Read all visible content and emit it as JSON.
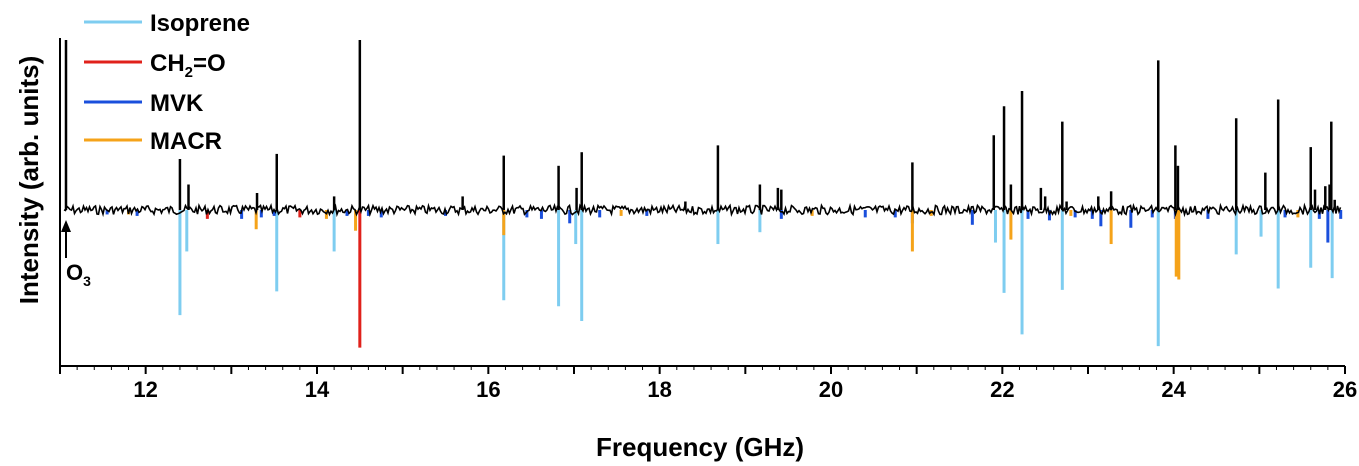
{
  "chart_data": {
    "type": "line",
    "xlabel": "Frequency (GHz)",
    "ylabel": "Intensity (arb. units)",
    "xlim": [
      11,
      26
    ],
    "ylim": [
      -1.0,
      1.0
    ],
    "x_ticks": [
      "12",
      "14",
      "16",
      "18",
      "20",
      "22",
      "24",
      "26"
    ],
    "legend": {
      "position": "top-left",
      "entries": [
        {
          "label": "Isoprene",
          "color": "#7ecdf0"
        },
        {
          "label": "CH2=O",
          "label_main": "CH",
          "label_sub": "2",
          "label_tail": "=O",
          "color": "#e0211b"
        },
        {
          "label": "MVK",
          "color": "#1a4fdc"
        },
        {
          "label": "MACR",
          "color": "#f5a31a"
        }
      ]
    },
    "annotation": {
      "label_main": "O",
      "label_sub": "3",
      "x": 11.07
    },
    "observed_color": "#000000",
    "observed": {
      "x": [
        11.07,
        12.4,
        12.5,
        13.3,
        13.53,
        14.2,
        14.5,
        15.7,
        16.18,
        16.82,
        17.03,
        17.09,
        18.3,
        18.68,
        19.17,
        19.38,
        19.42,
        20.95,
        21.9,
        22.02,
        22.1,
        22.23,
        22.45,
        22.5,
        22.7,
        22.75,
        23.12,
        23.27,
        23.82,
        24.02,
        24.05,
        24.73,
        25.07,
        25.22,
        25.6,
        25.65,
        25.77,
        25.82,
        25.84,
        25.88
      ],
      "y": [
        1.0,
        0.3,
        0.15,
        0.1,
        0.33,
        0.08,
        1.0,
        0.08,
        0.32,
        0.26,
        0.13,
        0.34,
        0.05,
        0.38,
        0.15,
        0.13,
        0.12,
        0.28,
        0.44,
        0.61,
        0.15,
        0.7,
        0.13,
        0.08,
        0.52,
        0.05,
        0.08,
        0.11,
        0.88,
        0.38,
        0.26,
        0.54,
        0.22,
        0.65,
        0.37,
        0.12,
        0.14,
        0.15,
        0.52,
        0.06
      ]
    },
    "series": [
      {
        "name": "Isoprene",
        "color": "#7ecdf0",
        "x": [
          12.4,
          12.48,
          13.53,
          14.2,
          16.18,
          16.82,
          17.02,
          17.09,
          18.68,
          19.17,
          21.92,
          22.02,
          22.23,
          22.7,
          23.82,
          24.73,
          25.02,
          25.22,
          25.6,
          25.85
        ],
        "y": [
          -0.71,
          -0.28,
          -0.55,
          -0.28,
          -0.61,
          -0.65,
          -0.23,
          -0.75,
          -0.23,
          -0.15,
          -0.22,
          -0.56,
          -0.84,
          -0.54,
          -0.92,
          -0.3,
          -0.18,
          -0.53,
          -0.39,
          -0.46
        ]
      },
      {
        "name": "CH2=O",
        "color": "#e0211b",
        "x": [
          12.72,
          13.8,
          14.5
        ],
        "y": [
          -0.06,
          -0.05,
          -0.93
        ]
      },
      {
        "name": "MVK",
        "color": "#1a4fdc",
        "x": [
          11.55,
          11.9,
          13.12,
          13.35,
          13.5,
          14.35,
          14.6,
          14.75,
          15.5,
          16.45,
          16.62,
          16.95,
          17.3,
          17.85,
          19.42,
          20.4,
          20.75,
          20.95,
          21.65,
          22.3,
          22.55,
          22.85,
          23.05,
          23.15,
          23.5,
          23.75,
          24.02,
          24.4,
          25.3,
          25.7,
          25.8,
          25.95
        ],
        "y": [
          -0.03,
          -0.04,
          -0.06,
          -0.05,
          -0.04,
          -0.04,
          -0.04,
          -0.05,
          -0.04,
          -0.05,
          -0.06,
          -0.09,
          -0.05,
          -0.04,
          -0.06,
          -0.05,
          -0.05,
          -0.09,
          -0.1,
          -0.06,
          -0.07,
          -0.05,
          -0.06,
          -0.11,
          -0.12,
          -0.05,
          -0.06,
          -0.06,
          -0.05,
          -0.06,
          -0.22,
          -0.06
        ]
      },
      {
        "name": "MACR",
        "color": "#f5a31a",
        "x": [
          11.8,
          13.29,
          14.11,
          14.45,
          16.18,
          17.55,
          19.78,
          20.95,
          21.17,
          22.1,
          22.8,
          23.27,
          24.03,
          24.06,
          25.45
        ],
        "y": [
          -0.03,
          -0.13,
          -0.06,
          -0.14,
          -0.17,
          -0.04,
          -0.04,
          -0.28,
          -0.04,
          -0.2,
          -0.04,
          -0.23,
          -0.45,
          -0.47,
          -0.05
        ]
      }
    ]
  }
}
